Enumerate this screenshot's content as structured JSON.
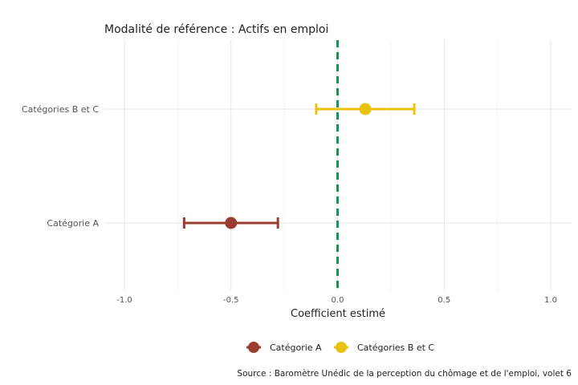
{
  "chart_data": {
    "type": "scatter",
    "subtitle": "Modalité de référence : Actifs en emploi",
    "xlabel": "Coefficient estimé",
    "ylabel": "",
    "xlim": [
      -1.05,
      1.08
    ],
    "x_ticks": [
      -1.0,
      -0.5,
      0.0,
      0.5,
      1.0
    ],
    "x_tick_labels": [
      "-1.0",
      "-0.5",
      "0.0",
      "0.5",
      "1.0"
    ],
    "categories": [
      "Catégorie A",
      "Catégories B et C"
    ],
    "series": [
      {
        "name": "Catégorie A",
        "category": "Catégorie A",
        "estimate": -0.5,
        "ci_low": -0.72,
        "ci_high": -0.28,
        "color": "#9a3d2e"
      },
      {
        "name": "Catégories B et C",
        "category": "Catégories B et C",
        "estimate": 0.13,
        "ci_low": -0.1,
        "ci_high": 0.36,
        "color": "#e8c20f"
      }
    ],
    "reference_line": {
      "x": 0,
      "style": "dashed",
      "color": "#119a4f"
    },
    "grid": true,
    "legend_position": "bottom",
    "caption": "Source : Baromètre Unédic de la perception du chômage et de l'emploi, volet 6"
  }
}
